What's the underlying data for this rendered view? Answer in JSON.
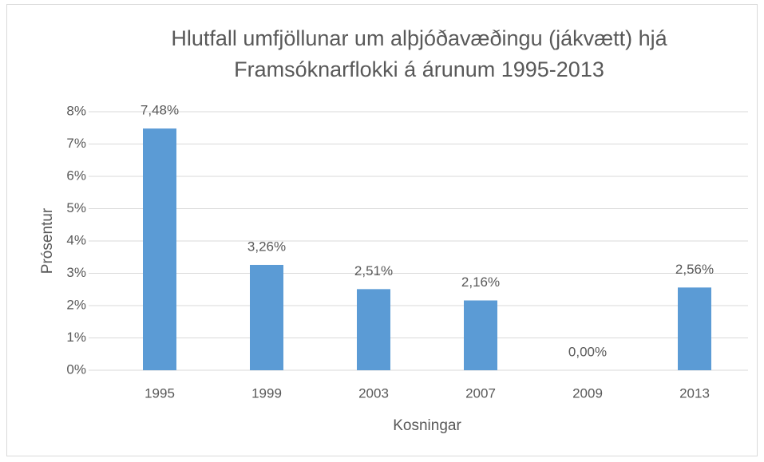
{
  "chart_data": {
    "type": "bar",
    "title": [
      "Hlutfall umfjöllunar um alþjóðavæðingu (jákvætt) hjá",
      "Framsóknarflokki á árunum 1995-2013"
    ],
    "x_label": "Kosningar",
    "y_label": "Prósentur",
    "categories": [
      "1995",
      "1999",
      "2003",
      "2007",
      "2009",
      "2013"
    ],
    "values": [
      7.48,
      3.26,
      2.51,
      2.16,
      0.0,
      2.56
    ],
    "value_labels": [
      "7,48%",
      "3,26%",
      "2,51%",
      "2,16%",
      "0,00%",
      "2,56%"
    ],
    "color": "#5b9bd5",
    "ylim": [
      0,
      8
    ],
    "yticks": [
      {
        "value": 0,
        "label": "0%"
      },
      {
        "value": 1,
        "label": "1%"
      },
      {
        "value": 2,
        "label": "2%"
      },
      {
        "value": 3,
        "label": "3%"
      },
      {
        "value": 4,
        "label": "4%"
      },
      {
        "value": 5,
        "label": "5%"
      },
      {
        "value": 6,
        "label": "6%"
      },
      {
        "value": 7,
        "label": "7%"
      },
      {
        "value": 8,
        "label": "8%"
      }
    ],
    "grid": true
  }
}
